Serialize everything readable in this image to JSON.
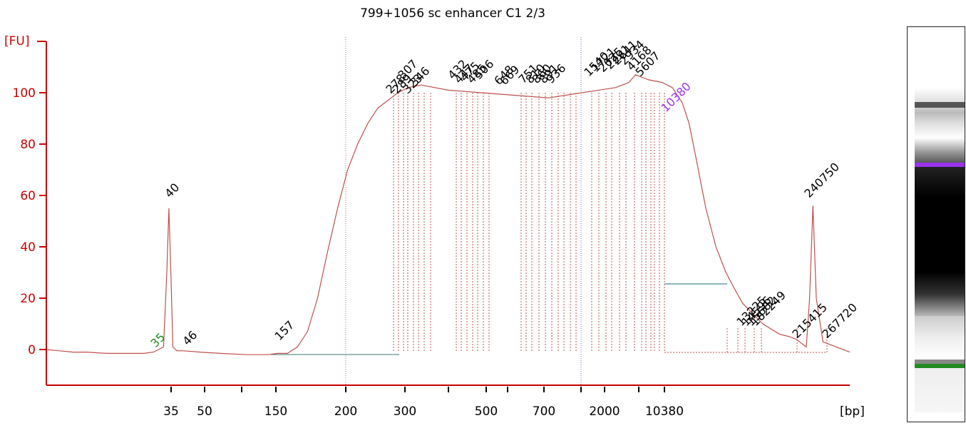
{
  "chart_data": {
    "type": "line",
    "title": "799+1056 sc enhancer C1 2/3",
    "ylabel": "[FU]",
    "xlabel": "[bp]",
    "ylim": [
      -14,
      120
    ],
    "yticks": [
      0,
      20,
      40,
      60,
      80,
      100
    ],
    "xticks": [
      "35",
      "50",
      "150",
      "200",
      "300",
      "500",
      "700",
      "2000",
      "10380"
    ],
    "colors": {
      "trace": "#c0504d",
      "axis": "#cc0000",
      "baseline": "#3a7a70",
      "lower_marker": "#228b22",
      "upper_marker": "#9933ee",
      "region": "#1e6b6b"
    },
    "markers": [
      {
        "label": "35",
        "role": "lower",
        "color": "#228b22"
      },
      {
        "label": "10380",
        "role": "upper",
        "color": "#9933ee"
      }
    ],
    "peaks": [
      {
        "label": "40"
      },
      {
        "label": "46"
      },
      {
        "label": "157"
      },
      {
        "label": "278"
      },
      {
        "label": "289"
      },
      {
        "label": "307"
      },
      {
        "label": "323"
      },
      {
        "label": "346"
      },
      {
        "label": "432"
      },
      {
        "label": "447"
      },
      {
        "label": "475"
      },
      {
        "label": "485"
      },
      {
        "label": "506"
      },
      {
        "label": "648"
      },
      {
        "label": "669"
      },
      {
        "label": "751"
      },
      {
        "label": "810"
      },
      {
        "label": "860"
      },
      {
        "label": "891"
      },
      {
        "label": "936"
      },
      {
        "label": "1540"
      },
      {
        "label": "1721"
      },
      {
        "label": "2025"
      },
      {
        "label": "2291"
      },
      {
        "label": "2641"
      },
      {
        "label": "2934"
      },
      {
        "label": "4168"
      },
      {
        "label": "5607"
      },
      {
        "label": "13225"
      },
      {
        "label": "14596"
      },
      {
        "label": "15682"
      },
      {
        "label": "182249"
      },
      {
        "label": "215415"
      },
      {
        "label": "240750"
      },
      {
        "label": "267720"
      }
    ],
    "series": [
      {
        "x": [
          0,
          20,
          40,
          60,
          90,
          120,
          145,
          160,
          175,
          180,
          183,
          186,
          189,
          195,
          205,
          230,
          260,
          300,
          330,
          345,
          360,
          375,
          390,
          405,
          420,
          435,
          450,
          465,
          480,
          495,
          505,
          515,
          525,
          540,
          560,
          600,
          650,
          700,
          750,
          800,
          850,
          870,
          880,
          900,
          920,
          935,
          950,
          960,
          970,
          985,
          1000,
          1015,
          1025,
          1040,
          1070,
          1095,
          1110,
          1120,
          1125,
          1130,
          1135,
          1140,
          1145,
          1150,
          1160,
          1180,
          1200
        ],
        "y": [
          0,
          -0.5,
          -1,
          -1,
          -1.5,
          -1.5,
          -1.5,
          -1,
          1,
          30,
          55,
          30,
          1,
          -0.5,
          -0.5,
          -1,
          -1.5,
          -2,
          -2,
          -1.5,
          -1.5,
          1,
          7,
          20,
          38,
          55,
          70,
          80,
          88,
          94,
          96,
          98,
          100,
          102,
          103,
          101,
          100,
          99,
          98,
          100,
          102,
          104,
          107,
          105,
          104,
          102,
          96,
          88,
          75,
          55,
          40,
          30,
          25,
          18,
          10,
          6,
          5,
          4,
          3,
          2,
          1,
          20,
          56,
          20,
          3,
          1,
          -1
        ]
      }
    ],
    "region": {
      "start": "278",
      "end": "5607"
    },
    "gel": {
      "lower_marker_color": "#228b22",
      "upper_marker_color": "#9933ee"
    }
  }
}
